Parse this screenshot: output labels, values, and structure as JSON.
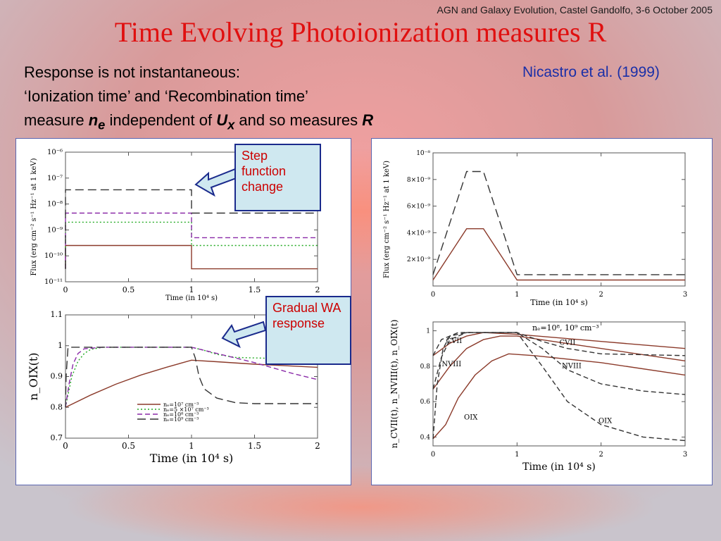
{
  "header": {
    "conference": "AGN and Galaxy Evolution, Castel Gandolfo, 3-6 October 2005",
    "title": "Time Evolving Photoionization measures R",
    "line1": "Response is not instantaneous:",
    "line2": "‘Ionization time’ and ‘Recombination time’",
    "line3_a": "measure",
    "ne_sym": "n",
    "ne_sub": "e",
    "line3_b": " independent of ",
    "ux_sym": "U",
    "ux_sub": "x",
    "line3_c": " and so measures ",
    "r_sym": "R",
    "reference": "Nicastro et al. (1999)"
  },
  "callouts": {
    "step": "Step function change",
    "gradual": "Gradual WA response"
  },
  "colors": {
    "brown": "#8b3a2a",
    "green": "#22aa22",
    "purple": "#8a2aa8",
    "dark": "#333333",
    "title": "#e01010"
  },
  "chart_data": [
    {
      "type": "line",
      "ylog": true,
      "xlim": [
        0,
        2
      ],
      "ylim_exp": [
        -11,
        -6
      ],
      "xlabel": "Time (in 10⁴ s)",
      "ylabel": "Flux (erg cm⁻² s⁻¹ Hz⁻¹ at 1 keV)",
      "xticks": [
        "0",
        "0.5",
        "1",
        "1.5",
        "2"
      ],
      "yticks": [
        "10⁻¹¹",
        "10⁻¹⁰",
        "10⁻⁹",
        "10⁻⁸",
        "10⁻⁷",
        "10⁻⁶"
      ],
      "series": [
        {
          "color": "brown",
          "style": "solid",
          "x": [
            0,
            0,
            1,
            1,
            2
          ],
          "y_exp": [
            -10.5,
            -9.6,
            -9.6,
            -10.5,
            -10.5
          ]
        },
        {
          "color": "green",
          "style": "dotted",
          "x": [
            0,
            0,
            1,
            1,
            2
          ],
          "y_exp": [
            -10.5,
            -8.7,
            -8.7,
            -9.6,
            -9.6
          ]
        },
        {
          "color": "purple",
          "style": "dashed",
          "x": [
            0,
            0,
            1,
            1,
            2
          ],
          "y_exp": [
            -10.5,
            -8.35,
            -8.35,
            -9.3,
            -9.3
          ]
        },
        {
          "color": "dark",
          "style": "longdash",
          "x": [
            0,
            0,
            1,
            1,
            2
          ],
          "y_exp": [
            -10.5,
            -7.45,
            -7.45,
            -8.35,
            -8.35
          ]
        }
      ]
    },
    {
      "type": "line",
      "xlim": [
        0,
        2
      ],
      "ylim": [
        0.7,
        1.1
      ],
      "xlabel": "Time (in 10⁴ s)",
      "ylabel": "n_OIX(t)",
      "xticks": [
        "0",
        "0.5",
        "1",
        "1.5",
        "2"
      ],
      "yticks": [
        "0.7",
        "0.8",
        "0.9",
        "1",
        "1.1"
      ],
      "legend": [
        "nₑ=10⁷ cm⁻³",
        "nₑ=5 ×10⁷ cm⁻³",
        "nₑ=10⁸ cm⁻³",
        "nₑ=10⁹ cm⁻³"
      ],
      "series": [
        {
          "color": "brown",
          "style": "solid",
          "x": [
            0,
            0.2,
            0.4,
            0.6,
            0.8,
            1.0,
            1.2,
            1.5,
            2.0
          ],
          "y": [
            0.8,
            0.84,
            0.875,
            0.905,
            0.93,
            0.953,
            0.948,
            0.94,
            0.93
          ]
        },
        {
          "color": "green",
          "style": "dotted",
          "x": [
            0,
            0.05,
            0.1,
            0.15,
            0.2,
            0.3,
            0.5,
            1.0,
            1.1,
            1.2,
            1.35,
            2.0
          ],
          "y": [
            0.8,
            0.9,
            0.95,
            0.975,
            0.988,
            0.995,
            0.995,
            0.995,
            0.985,
            0.972,
            0.962,
            0.955
          ]
        },
        {
          "color": "purple",
          "style": "dashed",
          "x": [
            0,
            0.03,
            0.06,
            0.1,
            0.15,
            0.3,
            1.0,
            1.2,
            1.5,
            1.8,
            2.0
          ],
          "y": [
            0.8,
            0.88,
            0.94,
            0.975,
            0.99,
            0.995,
            0.995,
            0.975,
            0.945,
            0.91,
            0.89
          ]
        },
        {
          "color": "dark",
          "style": "longdash",
          "x": [
            0,
            0.005,
            0.02,
            0.1,
            1.0,
            1.03,
            1.06,
            1.1,
            1.2,
            1.35,
            1.5,
            2.0
          ],
          "y": [
            0.8,
            0.9,
            0.995,
            0.995,
            0.995,
            0.96,
            0.9,
            0.86,
            0.83,
            0.815,
            0.812,
            0.812
          ]
        }
      ]
    },
    {
      "type": "line",
      "xlim": [
        0,
        3
      ],
      "ylim": [
        0,
        1e-08
      ],
      "xlabel": "Time (in 10⁴ s)",
      "ylabel": "Flux (erg cm⁻² s⁻¹ Hz⁻¹ at 1 keV)",
      "xticks": [
        "0",
        "1",
        "2",
        "3"
      ],
      "yticks": [
        "2×10⁻⁹",
        "4×10⁻⁹",
        "6×10⁻⁹",
        "8×10⁻⁹",
        "10⁻⁸"
      ],
      "series": [
        {
          "color": "brown",
          "style": "solid",
          "x": [
            0,
            0.4,
            0.6,
            1.0,
            3.0
          ],
          "y": [
            4.5e-10,
            4.3e-09,
            4.3e-09,
            4.5e-10,
            4.5e-10
          ]
        },
        {
          "color": "dark",
          "style": "longdash",
          "x": [
            0,
            0.4,
            0.6,
            1.0,
            3.0
          ],
          "y": [
            8.5e-10,
            8.6e-09,
            8.6e-09,
            8.5e-10,
            8.5e-10
          ]
        }
      ]
    },
    {
      "type": "line",
      "xlim": [
        0,
        3
      ],
      "ylim": [
        0.35,
        1.05
      ],
      "xlabel": "Time (in 10⁴ s)",
      "ylabel": "n_CVII(t), n_NVIII(t), n_OIX(t)",
      "xticks": [
        "0",
        "1",
        "2",
        "3"
      ],
      "yticks": [
        "0.4",
        "0.6",
        "0.8",
        "1"
      ],
      "annotation": "nₑ=10⁸, 10⁹ cm⁻³",
      "labels": [
        "CVII",
        "NVIII",
        "OIX",
        "CVII",
        "NVIII",
        "OIX"
      ],
      "series": [
        {
          "color": "brown",
          "style": "solid",
          "x": [
            0,
            0.2,
            0.4,
            0.6,
            1.0,
            2.0,
            3.0
          ],
          "y": [
            0.86,
            0.93,
            0.97,
            0.99,
            0.98,
            0.94,
            0.9
          ]
        },
        {
          "color": "brown",
          "style": "solid",
          "x": [
            0,
            0.2,
            0.4,
            0.6,
            0.8,
            1.0,
            2.0,
            3.0
          ],
          "y": [
            0.67,
            0.8,
            0.9,
            0.95,
            0.97,
            0.97,
            0.9,
            0.83
          ]
        },
        {
          "color": "brown",
          "style": "solid",
          "x": [
            0,
            0.15,
            0.3,
            0.5,
            0.7,
            0.9,
            1.2,
            2.0,
            3.0
          ],
          "y": [
            0.39,
            0.47,
            0.62,
            0.75,
            0.83,
            0.87,
            0.86,
            0.82,
            0.75
          ]
        },
        {
          "color": "dark",
          "style": "dashed",
          "x": [
            0,
            0.1,
            0.3,
            1.0,
            1.3,
            1.6,
            2.0,
            3.0
          ],
          "y": [
            0.86,
            0.95,
            0.99,
            0.99,
            0.94,
            0.9,
            0.87,
            0.86
          ]
        },
        {
          "color": "dark",
          "style": "dashed",
          "x": [
            0,
            0.1,
            0.2,
            0.4,
            1.0,
            1.3,
            1.6,
            2.0,
            2.5,
            3.0
          ],
          "y": [
            0.67,
            0.85,
            0.95,
            0.99,
            0.99,
            0.9,
            0.78,
            0.7,
            0.66,
            0.64
          ]
        },
        {
          "color": "dark",
          "style": "dashed",
          "x": [
            0,
            0.05,
            0.12,
            0.2,
            0.4,
            1.0,
            1.3,
            1.6,
            2.0,
            2.5,
            3.0
          ],
          "y": [
            0.39,
            0.7,
            0.9,
            0.97,
            0.99,
            0.99,
            0.8,
            0.6,
            0.47,
            0.4,
            0.38
          ]
        }
      ]
    }
  ]
}
